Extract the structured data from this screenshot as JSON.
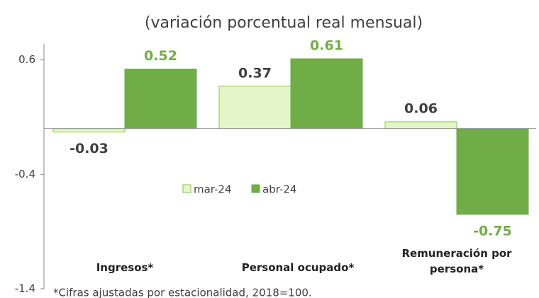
{
  "chart_data": {
    "type": "bar",
    "title": "(variación porcentual real mensual)",
    "categories": [
      "Ingresos*",
      "Personal ocupado*",
      "Remuneración por persona*"
    ],
    "series": [
      {
        "name": "mar-24",
        "color": "#e3f5c9",
        "values": [
          -0.03,
          0.37,
          0.06
        ]
      },
      {
        "name": "abr-24",
        "color": "#70ad47",
        "values": [
          0.52,
          0.61,
          -0.75
        ]
      }
    ],
    "ylim": [
      -1.4,
      0.74
    ],
    "yticks": [
      0.6,
      -0.4,
      -1.4
    ],
    "grid": false,
    "legend": "center",
    "footnote": "*Cifras ajustadas por estacionalidad, 2018=100."
  }
}
